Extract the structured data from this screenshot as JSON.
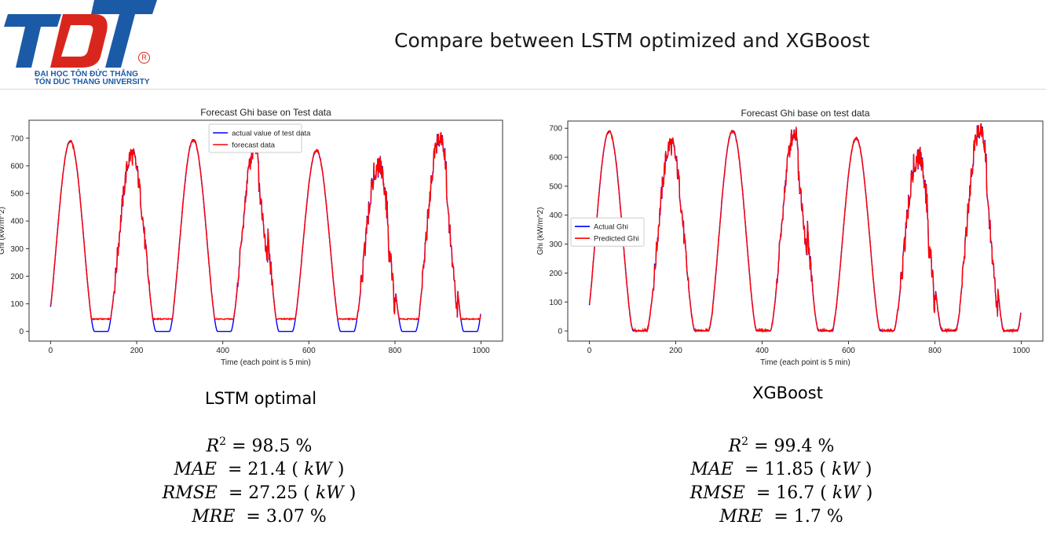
{
  "slide": {
    "title": "Compare between LSTM optimized and XGBoost",
    "logo": {
      "mark": "TDT",
      "line1": "ĐẠI HỌC TÔN ĐỨC THẮNG",
      "line2": "TON DUC THANG UNIVERSITY",
      "registered": "R"
    }
  },
  "left": {
    "model": "LSTM optimal",
    "metrics": {
      "r2": {
        "name": "R",
        "sup": "2",
        "value": "= 98.5 %"
      },
      "mae": {
        "name": "MAE",
        "value": "= 21.4 ( ",
        "unit": "kW",
        "close": " )"
      },
      "rmse": {
        "name": "RMSE",
        "value": "= 27.25 ( ",
        "unit": "kW",
        "close": " )"
      },
      "mre": {
        "name": "MRE",
        "value": "= 3.07 %"
      }
    }
  },
  "right": {
    "model": "XGBoost",
    "metrics": {
      "r2": {
        "name": "R",
        "sup": "2",
        "value": "= 99.4 %"
      },
      "mae": {
        "name": "MAE",
        "value": "= 11.85 ( ",
        "unit": "kW",
        "close": " )"
      },
      "rmse": {
        "name": "RMSE",
        "value": "= 16.7 ( ",
        "unit": "kW",
        "close": " )"
      },
      "mre": {
        "name": "MRE",
        "value": "= 1.7 %"
      }
    }
  },
  "chart_data": [
    {
      "type": "line",
      "title": "Forecast Ghi base on Test data",
      "xlabel": "Time (each point is 5 min)",
      "ylabel": "Ghi (kW/m^2)",
      "xlim": [
        -50,
        1050
      ],
      "ylim": [
        -35,
        765
      ],
      "xticks": [
        0,
        200,
        400,
        600,
        800,
        1000
      ],
      "yticks": [
        0,
        100,
        200,
        300,
        400,
        500,
        600,
        700
      ],
      "legend": "top-center",
      "colors": {
        "actual": "#0000ff",
        "forecast": "#ff0000"
      },
      "series": [
        {
          "name": "actual value of test data",
          "key": "actual"
        },
        {
          "name": "forecast data",
          "key": "forecast"
        }
      ],
      "curve": {
        "n_points": 1000,
        "cycle_length": 143,
        "peaks": [
          690,
          640,
          695,
          670,
          655,
          600,
          700
        ],
        "night_floor_actual": 0,
        "night_floor_forecast": 45
      }
    },
    {
      "type": "line",
      "title": "Forecast Ghi base on test data",
      "xlabel": "Time (each point is 5 min)",
      "ylabel": "Ghi (kW/m^2)",
      "xlim": [
        -50,
        1050
      ],
      "ylim": [
        -35,
        725
      ],
      "xticks": [
        0,
        200,
        400,
        600,
        800,
        1000
      ],
      "yticks": [
        0,
        100,
        200,
        300,
        400,
        500,
        600,
        700
      ],
      "legend": "center-left",
      "colors": {
        "actual": "#0000ff",
        "forecast": "#ff0000"
      },
      "series": [
        {
          "name": "Actual Ghi",
          "key": "actual"
        },
        {
          "name": "Predicted Ghi",
          "key": "forecast"
        }
      ],
      "curve": {
        "n_points": 1000,
        "cycle_length": 143,
        "peaks": [
          690,
          645,
          692,
          685,
          665,
          600,
          695
        ],
        "night_floor_actual": 0,
        "night_floor_forecast": 0
      }
    }
  ]
}
